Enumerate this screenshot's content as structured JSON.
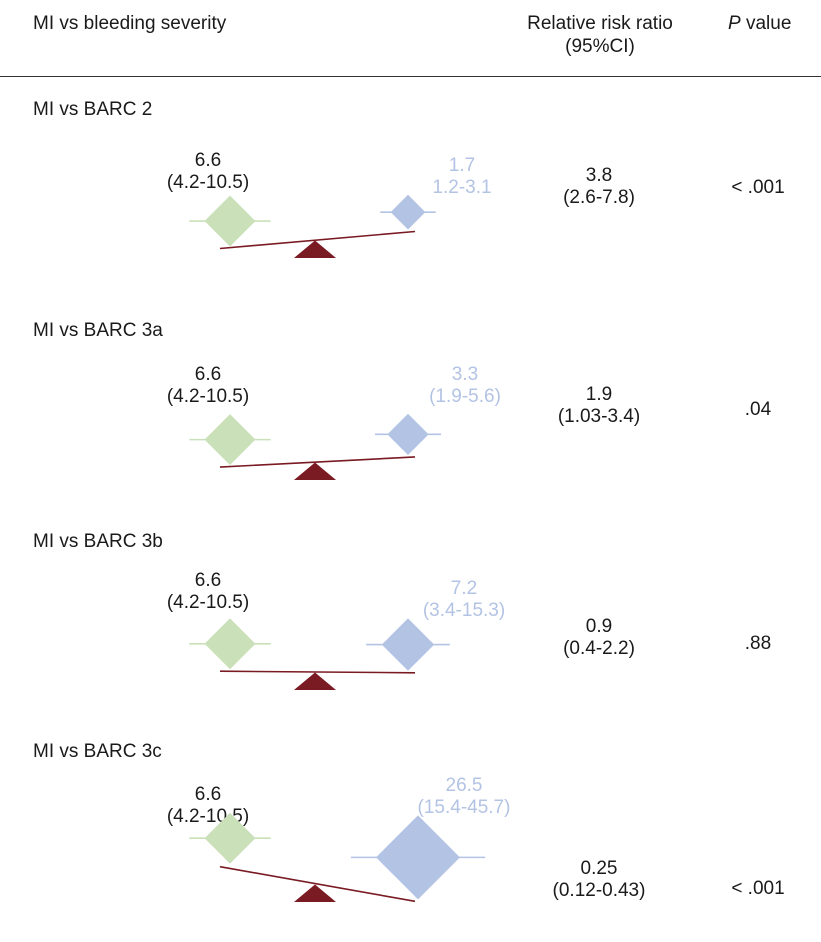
{
  "header": {
    "title": "MI vs bleeding severity",
    "rr_line1": "Relative risk ratio",
    "rr_line2": "(95%CI)",
    "p_label_italic": "P",
    "p_label_rest": " value"
  },
  "colors": {
    "mi_diamond": "#c9e0b8",
    "barc_diamond": "#b3c3e4",
    "beam": "#7a1a22",
    "fulcrum": "#7a1a22",
    "barc_text": "#b3c3e4"
  },
  "chart_data": {
    "type": "table",
    "columns": [
      "MI vs bleeding severity",
      "Relative risk ratio (95%CI)",
      "P value"
    ],
    "rows": [
      {
        "title": "MI vs BARC 2",
        "mi_value": "6.6",
        "mi_ci": "(4.2-10.5)",
        "barc_value": "1.7",
        "barc_ci": "1.2-3.1",
        "rr": "3.8",
        "rr_ci": "(2.6-7.8)",
        "p": "< .001"
      },
      {
        "title": "MI vs BARC 3a",
        "mi_value": "6.6",
        "mi_ci": "(4.2-10.5)",
        "barc_value": "3.3",
        "barc_ci": "(1.9-5.6)",
        "rr": "1.9",
        "rr_ci": "(1.03-3.4)",
        "p": ".04"
      },
      {
        "title": "MI vs BARC 3b",
        "mi_value": "6.6",
        "mi_ci": "(4.2-10.5)",
        "barc_value": "7.2",
        "barc_ci": "(3.4-15.3)",
        "rr": "0.9",
        "rr_ci": "(0.4-2.2)",
        "p": ".88"
      },
      {
        "title": "MI vs BARC 3c",
        "mi_value": "6.6",
        "mi_ci": "(4.2-10.5)",
        "barc_value": "26.5",
        "barc_ci": "(15.4-45.7)",
        "rr": "0.25",
        "rr_ci": "(0.12-0.43)",
        "p": "< .001"
      }
    ]
  }
}
